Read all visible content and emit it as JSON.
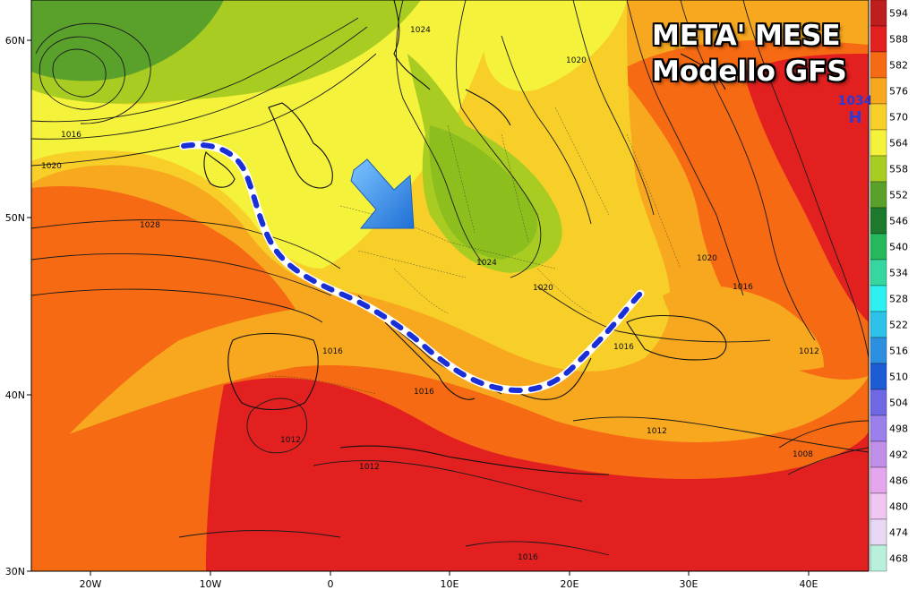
{
  "title": {
    "line1": "META' MESE",
    "line2": "Modello GFS"
  },
  "high_pressure": {
    "value": "1034",
    "symbol": "H"
  },
  "latitude_labels": [
    "60N",
    "50N",
    "40N",
    "30N"
  ],
  "longitude_labels": [
    "20W",
    "10W",
    "0",
    "10E",
    "20E",
    "30E",
    "40E"
  ],
  "isobar_labels": [
    "1024",
    "1020",
    "1016",
    "1020",
    "1028",
    "1024",
    "1020",
    "1020",
    "1016",
    "1016",
    "1016",
    "1016",
    "1012",
    "1012",
    "1012",
    "1012",
    "1008",
    "1016"
  ],
  "colorbar": {
    "levels": [
      {
        "value": "594",
        "color": "#bf1e1e"
      },
      {
        "value": "588",
        "color": "#e22020"
      },
      {
        "value": "582",
        "color": "#f56a12"
      },
      {
        "value": "576",
        "color": "#f8a81e"
      },
      {
        "value": "570",
        "color": "#f7cf28"
      },
      {
        "value": "564",
        "color": "#f4f23a"
      },
      {
        "value": "558",
        "color": "#a9cc22"
      },
      {
        "value": "552",
        "color": "#5aa12c"
      },
      {
        "value": "546",
        "color": "#1d7a2c"
      },
      {
        "value": "540",
        "color": "#27b85c"
      },
      {
        "value": "534",
        "color": "#35d6a0"
      },
      {
        "value": "528",
        "color": "#2ff0f0"
      },
      {
        "value": "522",
        "color": "#2ec2ea"
      },
      {
        "value": "516",
        "color": "#2d8fe0"
      },
      {
        "value": "510",
        "color": "#1e5cd6"
      },
      {
        "value": "504",
        "color": "#6f68e4"
      },
      {
        "value": "498",
        "color": "#9b7fea"
      },
      {
        "value": "492",
        "color": "#bf8fea"
      },
      {
        "value": "486",
        "color": "#e6a6ee"
      },
      {
        "value": "480",
        "color": "#f1c6f2"
      },
      {
        "value": "474",
        "color": "#e8d8f4"
      },
      {
        "value": "468",
        "color": "#b8f0dc"
      }
    ]
  },
  "colors": {
    "dashed_line": "#1a2fd6",
    "arrow": "#2f7fe0",
    "high_label": "#2a3bd8"
  }
}
